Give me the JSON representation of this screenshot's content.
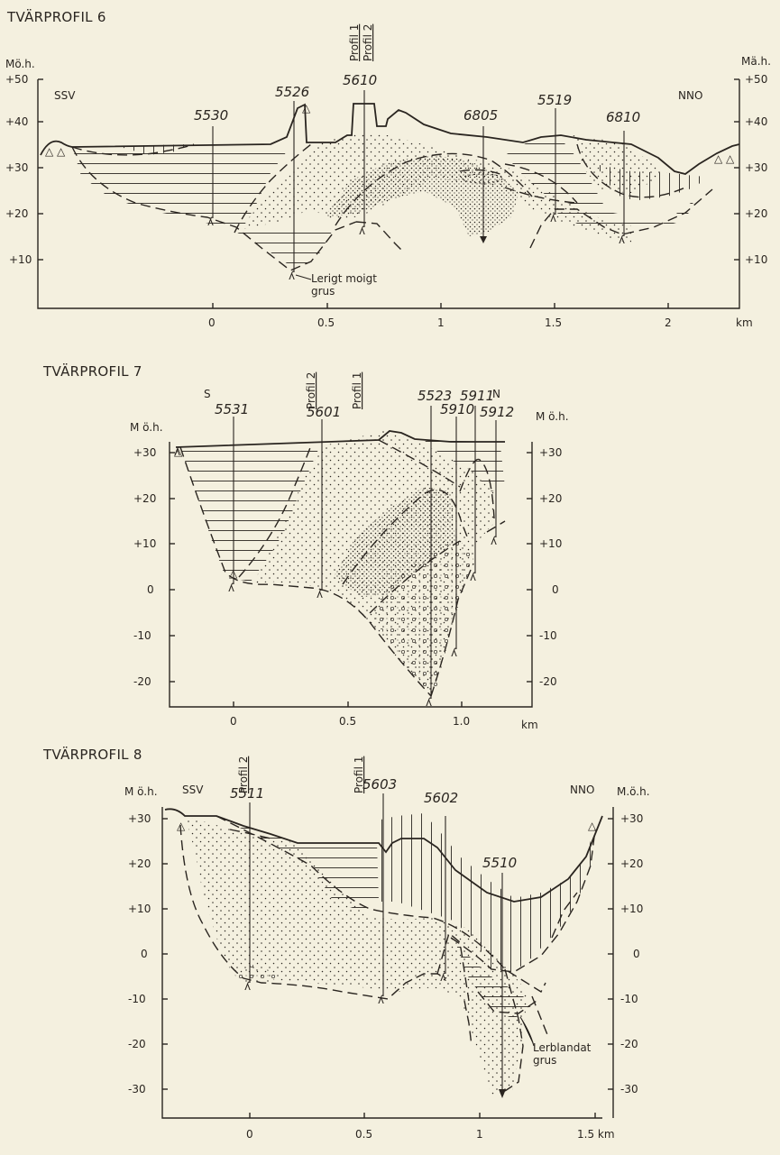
{
  "colors": {
    "paper": "#f4f0df",
    "ink": "#2a2520"
  },
  "profiles": [
    {
      "id": "p6",
      "title": "TVÄRPROFIL 6",
      "left_dir": "SSV",
      "right_dir": "NNO",
      "unit_left": "Mö.h.",
      "unit_right": "Mä.h.",
      "y_ticks": [
        "+50",
        "+40",
        "+30",
        "+20",
        "+10"
      ],
      "x_ticks": [
        "0",
        "0.5",
        "1",
        "1.5",
        "2"
      ],
      "x_unit": "km",
      "refs": [
        "Profil 1",
        "Profil 2"
      ],
      "boreholes": [
        "5530",
        "5526",
        "5610",
        "6805",
        "5519",
        "6810"
      ],
      "note_lines": [
        "Lerigt moigt",
        "grus"
      ]
    },
    {
      "id": "p7",
      "title": "TVÄRPROFIL 7",
      "left_dir": "S",
      "right_dir": "N",
      "unit_left": "M ö.h.",
      "unit_right": "M ö.h.",
      "y_ticks": [
        "+30",
        "+20",
        "+10",
        "0",
        "-10",
        "-20"
      ],
      "x_ticks": [
        "0",
        "0.5",
        "1.0"
      ],
      "x_unit": "km",
      "refs": [
        "Profil 2",
        "Profil 1"
      ],
      "boreholes": [
        "5531",
        "5601",
        "5523",
        "5910",
        "5911",
        "5912"
      ]
    },
    {
      "id": "p8",
      "title": "TVÄRPROFIL 8",
      "left_dir": "SSV",
      "right_dir": "NNO",
      "unit_left": "M ö.h.",
      "unit_right": "M.ö.h.",
      "y_ticks": [
        "+30",
        "+20",
        "+10",
        "0",
        "-10",
        "-20",
        "-30"
      ],
      "x_ticks": [
        "0",
        "0.5",
        "1",
        "1.5 km"
      ],
      "refs": [
        "Profil 2",
        "Profil 1"
      ],
      "boreholes": [
        "5511",
        "5603",
        "5602",
        "5510"
      ],
      "note_lines": [
        "Lerblandat",
        "grus"
      ]
    }
  ]
}
